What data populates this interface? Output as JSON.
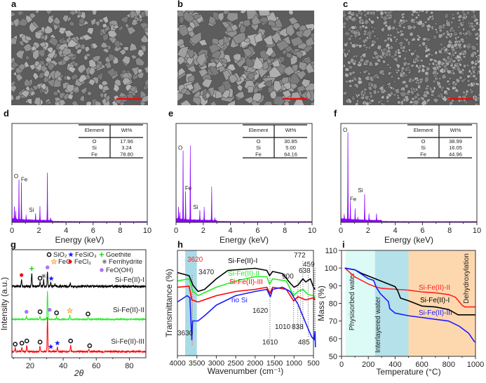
{
  "panel_labels": [
    "a",
    "b",
    "c",
    "d",
    "e",
    "f",
    "g",
    "h",
    "i"
  ],
  "sem_images": [
    {
      "panel": "a",
      "scale_bar_color": "#e01010"
    },
    {
      "panel": "b",
      "scale_bar_color": "#e01010"
    },
    {
      "panel": "c",
      "scale_bar_color": "#e01010"
    }
  ],
  "chart_data": [
    {
      "panel": "d",
      "type": "area",
      "color": "#8b00ff",
      "xlabel": "Energy (keV)",
      "xlim": [
        0,
        10
      ],
      "xticks": [
        0,
        2,
        4,
        6,
        8,
        10
      ],
      "peaks": [
        [
          0.0,
          0.98
        ],
        [
          0.18,
          0.13
        ],
        [
          0.28,
          0.08
        ],
        [
          0.52,
          0.41
        ],
        [
          0.7,
          0.38
        ],
        [
          1.05,
          0.05
        ],
        [
          1.75,
          0.07
        ],
        [
          2.07,
          0.14
        ],
        [
          2.62,
          0.48
        ],
        [
          2.85,
          0.03
        ]
      ],
      "peak_labels": [
        {
          "text": "O",
          "energy": 0.52
        },
        {
          "text": "Fe",
          "energy": 0.7
        },
        {
          "text": "Si",
          "energy": 1.75
        }
      ],
      "table": {
        "headers": [
          "Element",
          "Wt%"
        ],
        "rows": [
          [
            "O",
            "17.96"
          ],
          [
            "Si",
            "3.24"
          ],
          [
            "Fe",
            "78.80"
          ]
        ]
      }
    },
    {
      "panel": "e",
      "type": "area",
      "color": "#8b00ff",
      "xlabel": "Energy (keV)",
      "xlim": [
        0,
        10
      ],
      "xticks": [
        0,
        2,
        4,
        6,
        8,
        10
      ],
      "peaks": [
        [
          0.0,
          0.98
        ],
        [
          0.18,
          0.12
        ],
        [
          0.28,
          0.07
        ],
        [
          0.52,
          0.7
        ],
        [
          0.7,
          0.29
        ],
        [
          1.05,
          0.75
        ],
        [
          1.75,
          0.1
        ],
        [
          2.07,
          0.13
        ],
        [
          2.62,
          0.34
        ],
        [
          2.85,
          0.03
        ]
      ],
      "peak_labels": [
        {
          "text": "O",
          "energy": 0.52
        },
        {
          "text": "Fe",
          "energy": 0.7
        },
        {
          "text": "Si",
          "energy": 1.75
        }
      ],
      "table": {
        "headers": [
          "Element",
          "Wt%"
        ],
        "rows": [
          [
            "O",
            "30.85"
          ],
          [
            "Si",
            "5.00"
          ],
          [
            "Fe",
            "64.16"
          ]
        ]
      }
    },
    {
      "panel": "f",
      "type": "area",
      "color": "#8b00ff",
      "xlabel": "Energy (keV)",
      "xlim": [
        0,
        10
      ],
      "xticks": [
        0,
        2,
        4,
        6,
        8,
        10
      ],
      "peaks": [
        [
          0.0,
          0.6
        ],
        [
          0.25,
          0.05
        ],
        [
          0.52,
          0.88
        ],
        [
          0.7,
          0.18
        ],
        [
          1.05,
          0.12
        ],
        [
          1.25,
          0.03
        ],
        [
          1.75,
          0.27
        ],
        [
          2.07,
          0.07
        ],
        [
          2.62,
          0.07
        ]
      ],
      "peak_labels": [
        {
          "text": "O",
          "energy": 0.52
        },
        {
          "text": "Fe",
          "energy": 0.7
        },
        {
          "text": "Si",
          "energy": 1.75
        }
      ],
      "table": {
        "headers": [
          "Element",
          "Wt%"
        ],
        "rows": [
          [
            "O",
            "38.99"
          ],
          [
            "Si",
            "16.05"
          ],
          [
            "Fe",
            "44.96"
          ]
        ]
      }
    },
    {
      "panel": "g",
      "type": "line",
      "xlabel": "2θ",
      "ylabel": "Intensity (a.u.)",
      "xlim": [
        9,
        90
      ],
      "xticks": [
        20,
        40,
        60,
        80
      ],
      "legend": [
        {
          "text": "SiO₂",
          "symbol": "open-circle",
          "color": "#111111"
        },
        {
          "text": "FeSiO₃",
          "symbol": "star",
          "color": "#1a1aff"
        },
        {
          "text": "Goethite",
          "symbol": "plus",
          "color": "#22dd22"
        },
        {
          "text": "FeO",
          "symbol": "open-star",
          "color": "#f4a640"
        },
        {
          "text": "FeCl₃",
          "symbol": "dot",
          "color": "#ee1111"
        },
        {
          "text": "Ferrihydrite",
          "symbol": "asterisk",
          "color": "#777777"
        },
        {
          "text": "FeO(OH)",
          "symbol": "hexagon",
          "color": "#b070ff"
        }
      ],
      "series": [
        {
          "name": "Si-Fe(II)-I",
          "color": "#000000",
          "peaks": [
            [
              14.8,
              7
            ],
            [
              21,
              13
            ],
            [
              26,
              4
            ],
            [
              28.2,
              6
            ],
            [
              30.5,
              14
            ],
            [
              32.5,
              4
            ],
            [
              35,
              2
            ],
            [
              44.3,
              3
            ]
          ],
          "markers": [
            [
              "FeCl₃",
              14.8
            ],
            [
              "Goethite",
              21
            ],
            [
              "SiO₂",
              26
            ],
            [
              "Ferrihydrite",
              28.2
            ],
            [
              "FeO(OH)",
              30.5
            ],
            [
              "FeSiO₃",
              32.8
            ]
          ]
        },
        {
          "name": "Si-Fe(II)-II",
          "color": "#22ee22",
          "peaks": [
            [
              17.8,
              3
            ],
            [
              26,
              3
            ],
            [
              30.5,
              26
            ],
            [
              36,
              2
            ],
            [
              44,
              4
            ],
            [
              55,
              1
            ]
          ],
          "markers": [
            [
              "FeO(OH)",
              17.8
            ],
            [
              "SiO₂",
              26
            ],
            [
              "FeO(OH)",
              31.8
            ],
            [
              "SiO₂",
              36
            ],
            [
              "FeO",
              44
            ],
            [
              "SiO₂",
              55
            ]
          ]
        },
        {
          "name": "Si-Fe(II)-III",
          "color": "#ff0000",
          "peaks": [
            [
              11,
              3
            ],
            [
              15,
              4
            ],
            [
              18,
              6
            ],
            [
              26,
              5
            ],
            [
              30.5,
              32
            ],
            [
              36.5,
              4
            ],
            [
              44.5,
              6
            ],
            [
              55.5,
              2
            ]
          ],
          "markers": [
            [
              "SiO₂",
              11
            ],
            [
              "SiO₂",
              15
            ],
            [
              "SiO₂",
              18
            ],
            [
              "SiO₂",
              26
            ],
            [
              "FeSiO₃",
              32.5
            ],
            [
              "FeSiO₃",
              36.5
            ],
            [
              "SiO₂",
              44.5
            ],
            [
              "SiO₂",
              56
            ]
          ]
        }
      ]
    },
    {
      "panel": "h",
      "type": "line",
      "xlabel": "Wavenumber (cm⁻¹)",
      "ylabel": "Transmittance (%)",
      "xlim": [
        4000,
        500
      ],
      "xticks": [
        4000,
        3500,
        3000,
        2500,
        2000,
        1500,
        1000,
        500
      ],
      "highlight_band": [
        3800,
        3500
      ],
      "highlight_color": "#a9dbe6",
      "series": [
        {
          "name": "Si-Fe(II)-I",
          "color": "#000000",
          "points": [
            [
              4000,
              79
            ],
            [
              3700,
              76
            ],
            [
              3600,
              67
            ],
            [
              3470,
              61
            ],
            [
              3300,
              63
            ],
            [
              3000,
              73
            ],
            [
              2700,
              81
            ],
            [
              2000,
              83
            ],
            [
              1700,
              81
            ],
            [
              1630,
              76
            ],
            [
              1550,
              80
            ],
            [
              1300,
              78
            ],
            [
              1100,
              69
            ],
            [
              1000,
              65
            ],
            [
              900,
              67
            ],
            [
              772,
              73
            ],
            [
              700,
              70
            ],
            [
              580,
              73
            ],
            [
              500,
              65
            ],
            [
              459,
              63
            ]
          ]
        },
        {
          "name": "Si-Fe(II)-II",
          "color": "#22ee22",
          "points": [
            [
              4000,
              71
            ],
            [
              3700,
              73
            ],
            [
              3600,
              61
            ],
            [
              3470,
              57
            ],
            [
              3000,
              65
            ],
            [
              2500,
              71
            ],
            [
              2000,
              75
            ],
            [
              1700,
              75
            ],
            [
              1630,
              68
            ],
            [
              1550,
              73
            ],
            [
              1200,
              71
            ],
            [
              1010,
              57
            ],
            [
              900,
              61
            ],
            [
              772,
              63
            ],
            [
              638,
              58
            ],
            [
              500,
              57
            ],
            [
              459,
              55
            ]
          ]
        },
        {
          "name": "Si-Fe(II)-III",
          "color": "#ff0000",
          "points": [
            [
              4000,
              65
            ],
            [
              3700,
              66
            ],
            [
              3630,
              53
            ],
            [
              3470,
              51
            ],
            [
              3000,
              57
            ],
            [
              2500,
              61
            ],
            [
              2000,
              63
            ],
            [
              1700,
              65
            ],
            [
              1620,
              59
            ],
            [
              1550,
              65
            ],
            [
              1200,
              63
            ],
            [
              1010,
              52
            ],
            [
              900,
              56
            ],
            [
              700,
              53
            ],
            [
              500,
              55
            ],
            [
              459,
              53
            ]
          ]
        },
        {
          "name": "no Si",
          "color": "#1a1aff",
          "points": [
            [
              4000,
              51
            ],
            [
              3750,
              57
            ],
            [
              3680,
              55
            ],
            [
              3630,
              15
            ],
            [
              3610,
              33
            ],
            [
              3550,
              33
            ],
            [
              3470,
              33
            ],
            [
              3300,
              38
            ],
            [
              3000,
              48
            ],
            [
              2500,
              57
            ],
            [
              2000,
              61
            ],
            [
              1700,
              63
            ],
            [
              1610,
              56
            ],
            [
              1550,
              63
            ],
            [
              1300,
              65
            ],
            [
              1100,
              61
            ],
            [
              900,
              49
            ],
            [
              700,
              31
            ],
            [
              550,
              18
            ],
            [
              485,
              15
            ],
            [
              459,
              23
            ],
            [
              450,
              8
            ]
          ]
        }
      ],
      "annotations": [
        {
          "text": "3620",
          "color": "#ee2222"
        },
        {
          "text": "3470",
          "color": "#222222"
        },
        {
          "text": "3630",
          "color": "#222222"
        },
        {
          "text": "1620",
          "color": "#222222"
        },
        {
          "text": "1610",
          "color": "#222222"
        },
        {
          "text": "900",
          "color": "#222222"
        },
        {
          "text": "1010",
          "color": "#222222"
        },
        {
          "text": "838",
          "color": "#222222"
        },
        {
          "text": "772",
          "color": "#222222"
        },
        {
          "text": "638",
          "color": "#222222"
        },
        {
          "text": "459",
          "color": "#222222"
        },
        {
          "text": "485",
          "color": "#222222"
        }
      ]
    },
    {
      "panel": "i",
      "type": "line",
      "xlabel": "Temperature (°C)",
      "ylabel": "Mass (%)",
      "xlim": [
        0,
        1000
      ],
      "ylim": [
        50,
        110
      ],
      "xticks": [
        0,
        200,
        400,
        600,
        800,
        1000
      ],
      "yticks": [
        50,
        60,
        70,
        80,
        90,
        100,
        110
      ],
      "regions": [
        {
          "label": "Physisorbed water",
          "range": [
            30,
            250
          ],
          "color": "#dcfbf7"
        },
        {
          "label": "Interlayered water",
          "range": [
            250,
            500
          ],
          "color": "#b5e2ea"
        },
        {
          "label": "Dehydroxylation",
          "range": [
            500,
            1000
          ],
          "color": "#fdd8af"
        }
      ],
      "series": [
        {
          "name": "Si-Fe(II)-II",
          "color": "#ff2020",
          "points": [
            [
              25,
              100
            ],
            [
              100,
              95
            ],
            [
              200,
              91
            ],
            [
              250,
              89.5
            ],
            [
              300,
              88.5
            ],
            [
              400,
              88
            ],
            [
              500,
              87.5
            ],
            [
              600,
              86.5
            ],
            [
              700,
              86
            ],
            [
              800,
              85
            ],
            [
              850,
              83.5
            ],
            [
              900,
              79
            ],
            [
              920,
              78
            ],
            [
              1000,
              78
            ]
          ]
        },
        {
          "name": "Si-Fe(II)-I",
          "color": "#000000",
          "points": [
            [
              25,
              100
            ],
            [
              100,
              99
            ],
            [
              150,
              97
            ],
            [
              250,
              94
            ],
            [
              350,
              91
            ],
            [
              400,
              89.5
            ],
            [
              420,
              87
            ],
            [
              440,
              83
            ],
            [
              500,
              81.5
            ],
            [
              600,
              78.5
            ],
            [
              700,
              78
            ],
            [
              800,
              76.5
            ],
            [
              870,
              73.5
            ],
            [
              1000,
              73.5
            ]
          ]
        },
        {
          "name": "Si-Fe(II)-III",
          "color": "#1a1aff",
          "points": [
            [
              25,
              100
            ],
            [
              100,
              99
            ],
            [
              150,
              96.5
            ],
            [
              200,
              94
            ],
            [
              240,
              93
            ],
            [
              260,
              89
            ],
            [
              290,
              85.5
            ],
            [
              330,
              82.5
            ],
            [
              350,
              81
            ],
            [
              360,
              77
            ],
            [
              400,
              74.5
            ],
            [
              500,
              73
            ],
            [
              600,
              72
            ],
            [
              700,
              71
            ],
            [
              800,
              70
            ],
            [
              880,
              67
            ],
            [
              950,
              63
            ],
            [
              990,
              58.5
            ],
            [
              1000,
              58
            ]
          ]
        }
      ]
    }
  ]
}
